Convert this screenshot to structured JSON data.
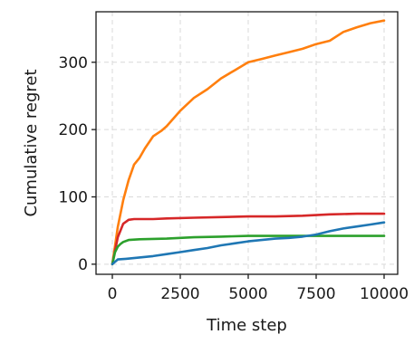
{
  "chart_data": {
    "type": "line",
    "title": "",
    "xlabel": "Time step",
    "ylabel": "Cumulative regret",
    "xlim": [
      -600,
      10500
    ],
    "ylim": [
      -15,
      375
    ],
    "xticks": [
      0,
      2500,
      5000,
      7500,
      10000
    ],
    "xtick_labels": [
      "0",
      "2500",
      "5000",
      "7500",
      "10000"
    ],
    "yticks": [
      0,
      100,
      200,
      300
    ],
    "ytick_labels": [
      "0",
      "100",
      "200",
      "300"
    ],
    "grid": true,
    "legend": "none",
    "series": [
      {
        "color": "#ff7f0e",
        "x": [
          0,
          200,
          400,
          600,
          800,
          1000,
          1200,
          1500,
          1800,
          2000,
          2500,
          3000,
          3500,
          4000,
          4500,
          5000,
          5500,
          6000,
          6500,
          7000,
          7500,
          8000,
          8500,
          9000,
          9500,
          10000
        ],
        "y": [
          0,
          55,
          95,
          125,
          148,
          158,
          172,
          190,
          198,
          205,
          228,
          247,
          260,
          276,
          288,
          300,
          305,
          310,
          315,
          320,
          327,
          332,
          345,
          352,
          358,
          362
        ]
      },
      {
        "color": "#d62728",
        "x": [
          0,
          200,
          400,
          600,
          800,
          1000,
          1500,
          2000,
          3000,
          4000,
          5000,
          6000,
          7000,
          8000,
          9000,
          10000
        ],
        "y": [
          0,
          40,
          60,
          66,
          67,
          67,
          67,
          68,
          69,
          70,
          71,
          71,
          72,
          74,
          75,
          75
        ]
      },
      {
        "color": "#2ca02c",
        "x": [
          0,
          100,
          200,
          300,
          400,
          600,
          1000,
          2000,
          3000,
          4000,
          5000,
          6000,
          7000,
          8000,
          9000,
          10000
        ],
        "y": [
          0,
          18,
          26,
          30,
          33,
          36,
          37,
          38,
          40,
          41,
          42,
          42,
          42,
          42,
          42,
          42
        ]
      },
      {
        "color": "#1f77b4",
        "x": [
          0,
          200,
          500,
          1000,
          1500,
          2000,
          2500,
          3000,
          3500,
          4000,
          4500,
          5000,
          5500,
          6000,
          6500,
          7000,
          7500,
          8000,
          8500,
          9000,
          9500,
          10000
        ],
        "y": [
          0,
          7,
          8,
          10,
          12,
          15,
          18,
          21,
          24,
          28,
          31,
          34,
          36,
          38,
          39,
          41,
          44,
          49,
          53,
          56,
          59,
          62
        ]
      }
    ]
  }
}
